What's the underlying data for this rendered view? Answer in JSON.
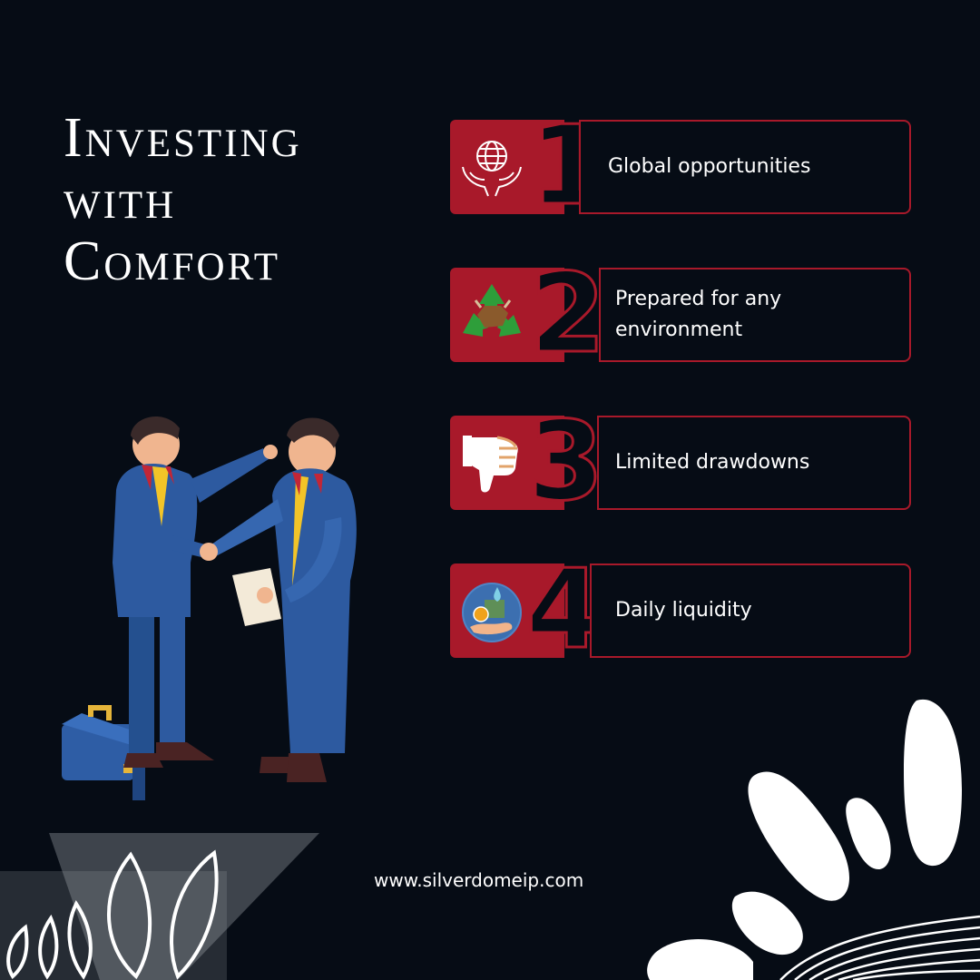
{
  "title": {
    "line1": "Investing",
    "line2": "with",
    "line3": "Comfort"
  },
  "features": [
    {
      "number": "1",
      "label": "Global opportunities",
      "icon": "globe-in-hands-icon"
    },
    {
      "number": "2",
      "label": "Prepared for any environment",
      "icon": "recycle-bull-icon"
    },
    {
      "number": "3",
      "label": "Limited drawdowns",
      "icon": "thumbs-down-icon"
    },
    {
      "number": "4",
      "label": "Daily liquidity",
      "icon": "money-hand-icon"
    }
  ],
  "website": "www.silverdomeip.com",
  "colors": {
    "background": "#060c15",
    "accent": "#a8192a",
    "text": "#ffffff"
  }
}
